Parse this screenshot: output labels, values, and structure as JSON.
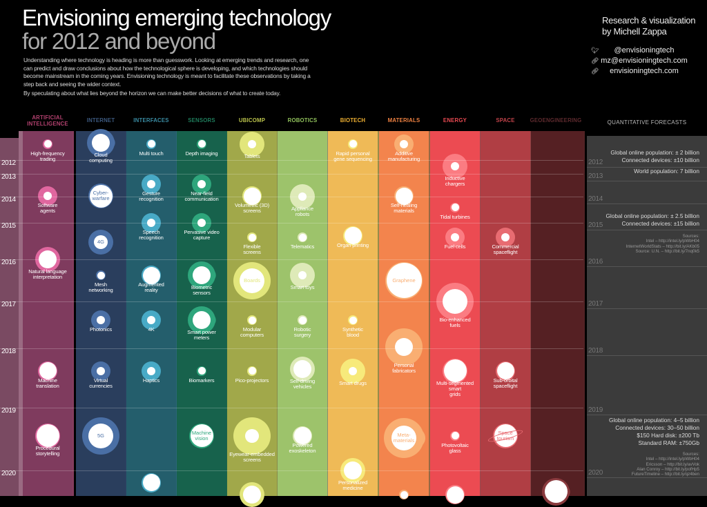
{
  "header": {
    "title_line1": "Envisioning emerging technology",
    "title_line2": "for 2012 and beyond",
    "intro_p1": "Understanding where technology is heading is more than guesswork. Looking at emerging trends and research, one can predict and draw conclusions about how the technological sphere is developing, and which technologies should become mainstream in the coming years. Envisioning technology is meant to facilitate these observations by taking a step back and seeing the wider context.",
    "intro_p2": "By speculating about what lies beyond the horizon we can make better decisions of what to create today.",
    "credit_line1": "Research & visualization",
    "credit_line2": "by Michell Zappa",
    "contacts": [
      {
        "icon": "twitter-icon",
        "text": "@envisioningtech"
      },
      {
        "icon": "link-icon",
        "text": "mz@envisioningtech.com"
      },
      {
        "icon": "link-icon",
        "text": "envisioningtech.com"
      }
    ]
  },
  "years": [
    "2012",
    "2013",
    "2014",
    "2015",
    "2016",
    "2017",
    "2018",
    "2019",
    "2020"
  ],
  "columns": [
    {
      "name": "ARTIFICIAL INTELLIGENCE",
      "bg": "#7f3b5e",
      "accent": "#e0679f",
      "head": "#b3416f"
    },
    {
      "name": "INTERNET",
      "bg": "#2a3e5d",
      "accent": "#4a6fa5",
      "head": "#3d5a80"
    },
    {
      "name": "INTERFACES",
      "bg": "#245e6c",
      "accent": "#48aac6",
      "head": "#3a8ca3"
    },
    {
      "name": "SENSORS",
      "bg": "#17624c",
      "accent": "#2ea67c",
      "head": "#1f7d5c"
    },
    {
      "name": "UBICOMP",
      "bg": "#a1a84a",
      "accent": "#e2e67b",
      "head": "#bcc44c"
    },
    {
      "name": "ROBOTICS",
      "bg": "#9dc36b",
      "accent": "#deeab8",
      "head": "#91c25c"
    },
    {
      "name": "BIOTECH",
      "bg": "#efba57",
      "accent": "#f7ea7b",
      "head": "#f0b132"
    },
    {
      "name": "MATERIALS",
      "bg": "#f3844d",
      "accent": "#f9ae72",
      "head": "#f08242"
    },
    {
      "name": "ENERGY",
      "bg": "#ec4b52",
      "accent": "#fb7c82",
      "head": "#ea4a52"
    },
    {
      "name": "SPACE",
      "bg": "#b03e44",
      "accent": "#e86c72",
      "head": "#c2434a"
    },
    {
      "name": "GEOENGINEERING",
      "bg": "#552023",
      "accent": "#8a3a3e",
      "head": "#5e2a2e"
    }
  ],
  "technologies": [
    {
      "col": 0,
      "year": 2011.45,
      "size": 1,
      "core": "full",
      "label": "High-frequency trading"
    },
    {
      "col": 0,
      "year": 2013.97,
      "size": 2,
      "core": "s",
      "label": "Software agents"
    },
    {
      "col": 0,
      "year": 2016.0,
      "size": 3,
      "core": "l",
      "label": "Natural language interpretation"
    },
    {
      "col": 0,
      "year": 2018.38,
      "size": 2,
      "core": "full",
      "label": "Machine translation"
    },
    {
      "col": 0,
      "year": 2019.45,
      "size": 3,
      "core": "full",
      "label": "Procedural storytelling"
    },
    {
      "col": 1,
      "year": 2011.4,
      "size": 3,
      "core": "l",
      "wavy": true,
      "label": "Cloud computing"
    },
    {
      "col": 1,
      "year": 2013.97,
      "size": 3,
      "core": "full",
      "inside": true,
      "label": "Cyber-warfare"
    },
    {
      "col": 1,
      "year": 2015.53,
      "size": 3,
      "core": "m",
      "inside": true,
      "label": "4G"
    },
    {
      "col": 1,
      "year": 2016.38,
      "size": 1,
      "core": "full",
      "label": "Mesh networking"
    },
    {
      "col": 1,
      "year": 2017.4,
      "size": 2,
      "core": "s",
      "label": "Photonics"
    },
    {
      "col": 1,
      "year": 2018.38,
      "size": 2,
      "core": "s",
      "label": "Virtual currencies"
    },
    {
      "col": 1,
      "year": 2019.45,
      "size": 4,
      "core": "xl",
      "inside": true,
      "label": "5G"
    },
    {
      "col": 2,
      "year": 2011.45,
      "size": 1,
      "core": "full",
      "label": "Multi touch"
    },
    {
      "col": 2,
      "year": 2013.45,
      "size": 2,
      "core": "s",
      "label": "Gesture recognition"
    },
    {
      "col": 2,
      "year": 2015.0,
      "size": 2,
      "core": "s",
      "label": "Speech recognition"
    },
    {
      "col": 2,
      "year": 2016.38,
      "size": 2,
      "core": "full",
      "label": "Augmented reality"
    },
    {
      "col": 2,
      "year": 2017.4,
      "size": 2,
      "core": "s",
      "label": "4K"
    },
    {
      "col": 2,
      "year": 2018.38,
      "size": 2,
      "core": "s",
      "label": "Haptics"
    },
    {
      "col": 2,
      "year": 2020.2,
      "size": 2,
      "core": "full",
      "label": ""
    },
    {
      "col": 3,
      "year": 2011.45,
      "size": 1,
      "core": "full",
      "label": "Depth imaging"
    },
    {
      "col": 3,
      "year": 2013.45,
      "size": 2,
      "core": "s",
      "label": "Near-field communication"
    },
    {
      "col": 3,
      "year": 2015.0,
      "size": 2,
      "core": "s",
      "label": "Pervasive video capture"
    },
    {
      "col": 3,
      "year": 2016.38,
      "size": 3,
      "core": "l",
      "wavy": true,
      "label": "Biometric sensors"
    },
    {
      "col": 3,
      "year": 2017.4,
      "size": 3,
      "core": "l",
      "wavy": true,
      "label": "Smart power meters"
    },
    {
      "col": 3,
      "year": 2018.38,
      "size": 1,
      "core": "full",
      "label": "Biomarkers"
    },
    {
      "col": 3,
      "year": 2019.45,
      "size": 3,
      "core": "full",
      "inside": true,
      "label": "Machine vision"
    },
    {
      "col": 4,
      "year": 2011.45,
      "size": 3,
      "core": "s",
      "label": "Tablets"
    },
    {
      "col": 4,
      "year": 2013.97,
      "size": 2,
      "core": "full",
      "label": "Volumetric (3D) screens"
    },
    {
      "col": 4,
      "year": 2015.4,
      "size": 1,
      "core": "full",
      "label": "Flexible screens"
    },
    {
      "col": 4,
      "year": 2016.5,
      "size": 4,
      "core": "xl",
      "inside": true,
      "label": "Boards"
    },
    {
      "col": 4,
      "year": 2017.4,
      "size": 1,
      "core": "full",
      "label": "Modular computers"
    },
    {
      "col": 4,
      "year": 2018.38,
      "size": 1,
      "core": "full",
      "label": "Pico-projectors"
    },
    {
      "col": 4,
      "year": 2019.45,
      "size": 4,
      "core": "m",
      "label": "Eyewear-embedded screens"
    },
    {
      "col": 4,
      "year": 2020.4,
      "size": 3,
      "core": "l",
      "label": ""
    },
    {
      "col": 5,
      "year": 2014.0,
      "size": 3,
      "core": "s",
      "label": "Appliance robots"
    },
    {
      "col": 5,
      "year": 2015.4,
      "size": 1,
      "core": "full",
      "label": "Telematics"
    },
    {
      "col": 5,
      "year": 2016.38,
      "size": 3,
      "core": "s",
      "label": "Smart toys"
    },
    {
      "col": 5,
      "year": 2017.4,
      "size": 1,
      "core": "full",
      "label": "Robotic surgery"
    },
    {
      "col": 5,
      "year": 2018.35,
      "size": 3,
      "core": "l",
      "label": "Self-driving vehicles"
    },
    {
      "col": 5,
      "year": 2019.45,
      "size": 2,
      "core": "full",
      "label": "Powered exoskeleton"
    },
    {
      "col": 6,
      "year": 2011.45,
      "size": 1,
      "core": "full",
      "label": "Rapid personal gene sequencing"
    },
    {
      "col": 6,
      "year": 2015.35,
      "size": 2,
      "core": "full",
      "label": "Organ printing"
    },
    {
      "col": 6,
      "year": 2017.4,
      "size": 1,
      "core": "full",
      "label": "Synthetic blood"
    },
    {
      "col": 6,
      "year": 2018.38,
      "size": 3,
      "core": "s",
      "label": "Smart drugs"
    },
    {
      "col": 6,
      "year": 2020.0,
      "size": 3,
      "core": "l",
      "label": "Personalized medicine"
    },
    {
      "col": 7,
      "year": 2011.45,
      "size": 2,
      "core": "s",
      "label": "Additive manufacturing"
    },
    {
      "col": 7,
      "year": 2013.97,
      "size": 2,
      "core": "full",
      "label": "Self-healing materials"
    },
    {
      "col": 7,
      "year": 2016.5,
      "size": 4,
      "core": "full",
      "inside": true,
      "label": "Graphene"
    },
    {
      "col": 7,
      "year": 2017.97,
      "size": 4,
      "core": "l",
      "label": "Personal fabricators"
    },
    {
      "col": 7,
      "year": 2019.48,
      "size": 4,
      "core": "xl",
      "wavy": true,
      "inside": true,
      "label": "Meta-materials"
    },
    {
      "col": 7,
      "year": 2020.4,
      "size": 1,
      "core": "full",
      "label": ""
    },
    {
      "col": 8,
      "year": 2012.45,
      "size": 3,
      "core": "s",
      "label": "Inductive chargers"
    },
    {
      "col": 8,
      "year": 2014.42,
      "size": 1,
      "core": "full",
      "label": "Tidal turbines"
    },
    {
      "col": 8,
      "year": 2015.4,
      "size": 2,
      "core": "s",
      "label": "Fuel cells"
    },
    {
      "col": 8,
      "year": 2017.0,
      "size": 4,
      "core": "xl",
      "label": "Bio-enhanced fuels"
    },
    {
      "col": 8,
      "year": 2018.38,
      "size": 3,
      "core": "full",
      "label": "Multi-segmented smart grids"
    },
    {
      "col": 8,
      "year": 2019.45,
      "size": 1,
      "core": "full",
      "label": "Photovoltaic glass"
    },
    {
      "col": 8,
      "year": 2020.4,
      "size": 2,
      "core": "full",
      "label": ""
    },
    {
      "col": 9,
      "year": 2015.4,
      "size": 2,
      "core": "s",
      "label": "Commercial spaceflight"
    },
    {
      "col": 9,
      "year": 2018.38,
      "size": 2,
      "core": "full",
      "label": "Sub-orbital spaceflight"
    },
    {
      "col": 9,
      "year": 2019.45,
      "size": 3,
      "core": "full",
      "inside": true,
      "planet": true,
      "label": "Space tourism"
    },
    {
      "col": 10,
      "year": 2020.35,
      "size": 3,
      "core": "full",
      "wavy": true,
      "label": ""
    }
  ],
  "forecasts": {
    "title": "QUANTITATIVE FORECASTS",
    "block_2012": [
      "Global online population: ± 2 billion",
      "Connected devices: ±10 billion"
    ],
    "block_2013": [
      "World population: 7 billion"
    ],
    "block_2015": [
      "Global online population: ± 2.5 billion",
      "Connected devices: ±15 billion"
    ],
    "sources_2015": [
      "Sources:",
      "Intel – http://intel.ly/pWbH04",
      "InternetWorldStats – http://bit.ly/AKb05",
      "Source: U.N. – http://bit.ly/7nq0k5"
    ],
    "block_2019": [
      "Global online population: 4–5 billion",
      "Connected devices: 30–50 billion",
      "$150 Hard disk: ±200 Tb",
      "Standard RAM: ±750Gb"
    ],
    "sources_2019": [
      "Sources:",
      "Intel – http://intel.ly/pWbH04",
      "Ericsson – http://bit.ly/avVok",
      "Alan Conroy – http://bit.ly/pofHp5",
      "FutureTimeline – http://bit.ly/qz4ben"
    ]
  }
}
